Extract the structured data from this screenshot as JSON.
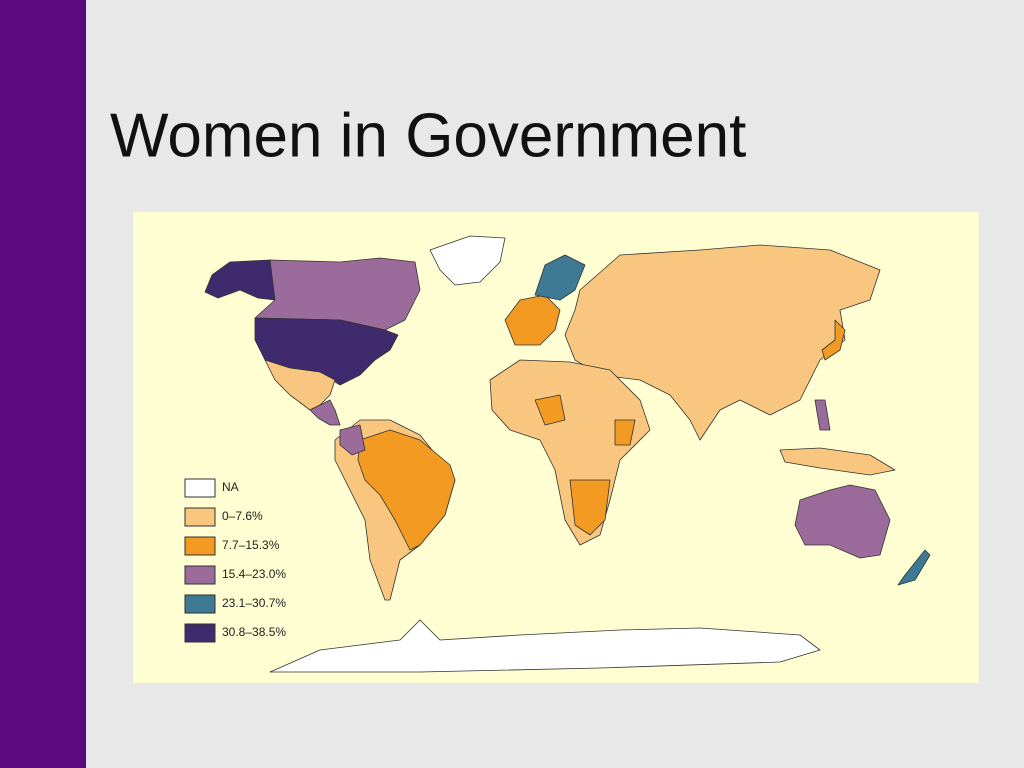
{
  "slide": {
    "title": "Women in Government"
  },
  "map": {
    "legend": [
      {
        "label": "NA",
        "color": "#ffffff"
      },
      {
        "label": "0–7.6%",
        "color": "#f8c67f"
      },
      {
        "label": "7.7–15.3%",
        "color": "#f39a22"
      },
      {
        "label": "15.4–23.0%",
        "color": "#9b6b9c"
      },
      {
        "label": "23.1–30.7%",
        "color": "#3e7a94"
      },
      {
        "label": "30.8–38.5%",
        "color": "#3f2a6e"
      }
    ]
  }
}
